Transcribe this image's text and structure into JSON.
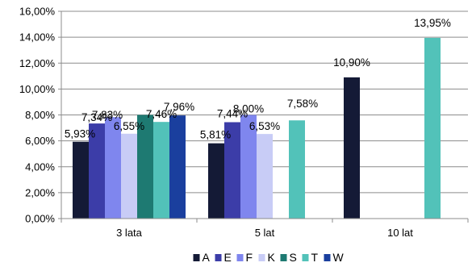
{
  "chart_data": {
    "type": "bar",
    "categories": [
      "3 lata",
      "5 lat",
      "10 lat"
    ],
    "series": [
      {
        "name": "A",
        "color": "#141a36",
        "values": [
          5.93,
          5.81,
          10.9
        ],
        "labels": [
          "5,93%",
          "5,81%",
          "10,90%"
        ]
      },
      {
        "name": "E",
        "color": "#3c3da8",
        "values": [
          7.34,
          7.44,
          null
        ],
        "labels": [
          "7,34%",
          "7,44%",
          ""
        ]
      },
      {
        "name": "F",
        "color": "#7f86ee",
        "values": [
          7.83,
          8.0,
          null
        ],
        "labels": [
          "7,83%",
          "8,00%",
          ""
        ]
      },
      {
        "name": "K",
        "color": "#c8ccf6",
        "values": [
          6.55,
          6.53,
          null
        ],
        "labels": [
          "6,55%",
          "6,53%",
          ""
        ]
      },
      {
        "name": "S",
        "color": "#1e7a72",
        "values": [
          8.0,
          null,
          null
        ],
        "labels": [
          "",
          "",
          ""
        ]
      },
      {
        "name": "T",
        "color": "#52c2b9",
        "values": [
          7.46,
          7.58,
          13.95
        ],
        "labels": [
          "7,46%",
          "7,58%",
          "13,95%"
        ]
      },
      {
        "name": "W",
        "color": "#1a3f9e",
        "values": [
          7.96,
          null,
          null
        ],
        "labels": [
          "7,96%",
          "",
          ""
        ]
      }
    ],
    "yticks": [
      "0,00%",
      "2,00%",
      "4,00%",
      "6,00%",
      "8,00%",
      "10,00%",
      "12,00%",
      "14,00%",
      "16,00%"
    ],
    "ylim": [
      0,
      16
    ],
    "grid": true,
    "legend": "bottom"
  }
}
